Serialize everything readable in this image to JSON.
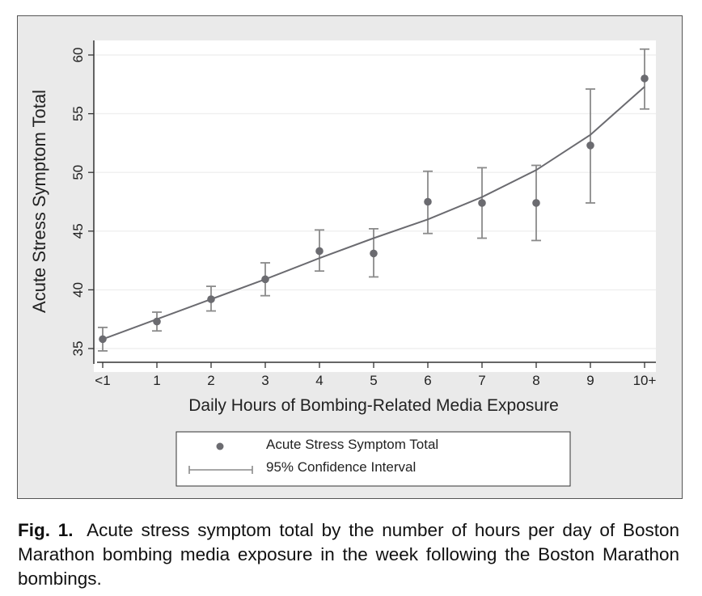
{
  "chart_data": {
    "type": "scatter",
    "title": "",
    "xlabel": "Daily Hours of Bombing-Related Media Exposure",
    "ylabel": "Acute Stress Symptom Total",
    "categories": [
      "<1",
      "1",
      "2",
      "3",
      "4",
      "5",
      "6",
      "7",
      "8",
      "9",
      "10+"
    ],
    "x": [
      0,
      1,
      2,
      3,
      4,
      5,
      6,
      7,
      8,
      9,
      10
    ],
    "series": [
      {
        "name": "Acute Stress Symptom Total",
        "kind": "points",
        "values": [
          35.8,
          37.3,
          39.2,
          40.9,
          43.3,
          43.1,
          47.5,
          47.4,
          47.4,
          52.3,
          58.0
        ]
      },
      {
        "name": "95% Confidence Interval",
        "kind": "errorbars",
        "lower": [
          34.8,
          36.5,
          38.2,
          39.5,
          41.6,
          41.1,
          44.8,
          44.4,
          44.2,
          47.4,
          55.4
        ],
        "upper": [
          36.8,
          38.1,
          40.3,
          42.3,
          45.1,
          45.2,
          50.1,
          50.4,
          50.6,
          57.1,
          60.5
        ]
      },
      {
        "name": "Fitted curve",
        "kind": "line",
        "values": [
          35.8,
          37.5,
          39.2,
          40.9,
          42.7,
          44.4,
          46.0,
          47.9,
          50.2,
          53.2,
          57.3
        ]
      }
    ],
    "yticks": [
      35,
      40,
      45,
      50,
      55,
      60
    ],
    "ylim": [
      34.1,
      61.8
    ],
    "xlim": [
      -0.15,
      10.2
    ],
    "grid": true,
    "legend": [
      "Acute Stress Symptom Total",
      "95% Confidence Interval"
    ],
    "legend_position": "bottom-center",
    "colors": {
      "points": "#6b6b70",
      "line": "#6b6b70",
      "errorbar": "#8a8a8a",
      "axis": "#333333",
      "grid": "#f2f2f2",
      "plot_bg": "#ffffff",
      "outer_bg": "#eaeaea"
    }
  },
  "caption": {
    "label": "Fig. 1.",
    "text": "Acute stress symptom total by the number of hours per day of Boston Marathon bombing media exposure in the week following the Boston Marathon bombings."
  }
}
